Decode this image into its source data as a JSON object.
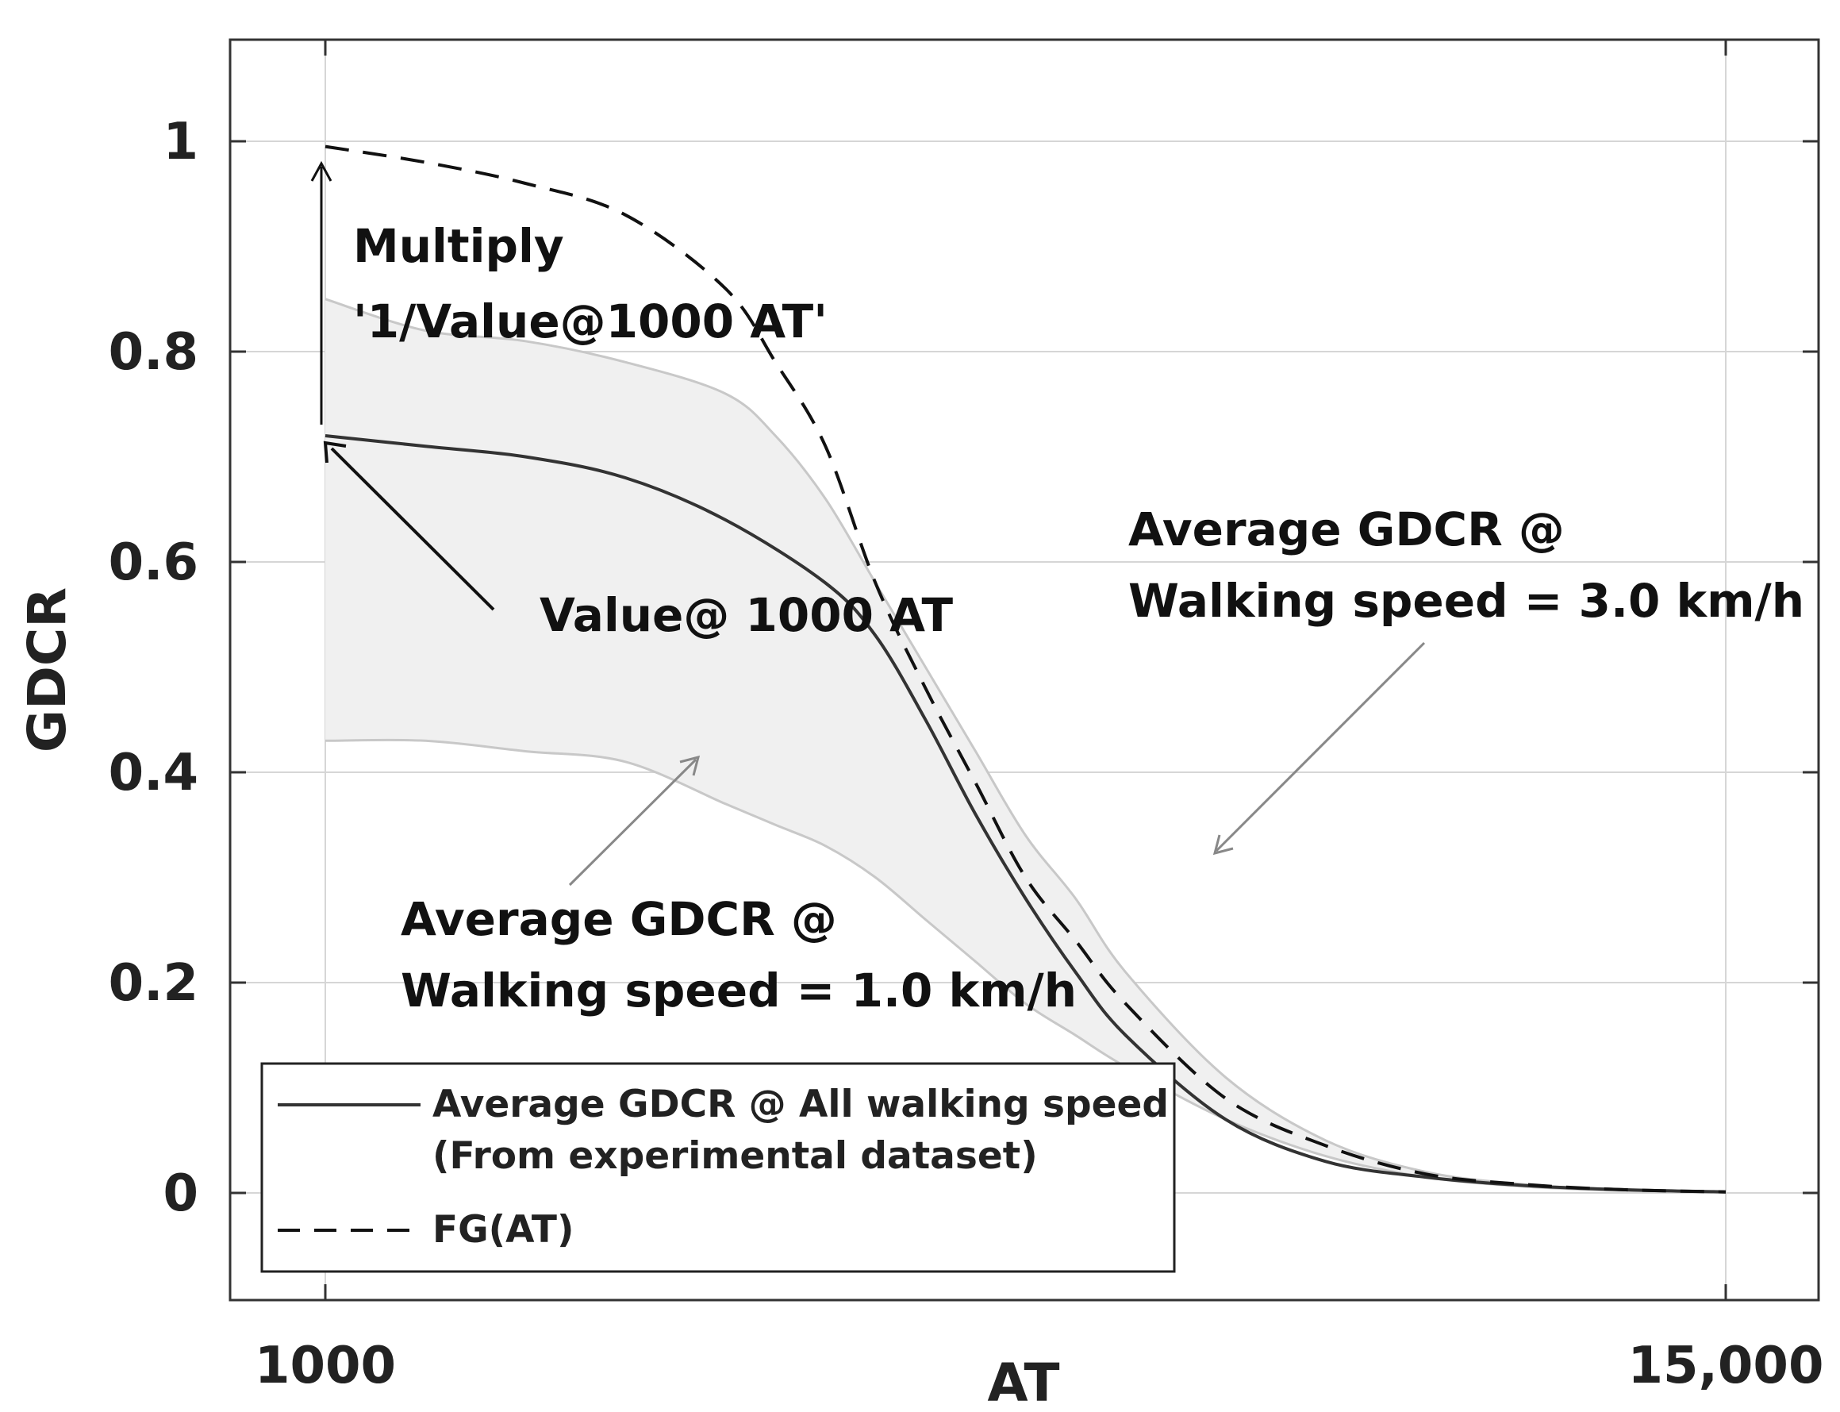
{
  "chart_data": {
    "type": "line",
    "title": "",
    "xlabel": "AT",
    "ylabel": "GDCR",
    "xlim": [
      1000,
      15000
    ],
    "ylim": [
      -0.1,
      1.1
    ],
    "grid": true,
    "x_tick_labels": [
      "1000",
      "15,000"
    ],
    "x_tick_values": [
      1000,
      15000
    ],
    "y_ticks": [
      0,
      0.2,
      0.4,
      0.6,
      0.8,
      1
    ],
    "y_tick_labels": [
      "0",
      "0.2",
      "0.4",
      "0.6",
      "0.8",
      "1"
    ],
    "series": [
      {
        "name": "Average GDCR @ All walking speed (From experimental dataset)",
        "style": "solid",
        "color": "#333333",
        "x": [
          1000,
          2000,
          3000,
          4000,
          5000,
          6000,
          6500,
          7000,
          7500,
          8000,
          8500,
          9000,
          10000,
          11000,
          12000,
          13000,
          14000,
          15000
        ],
        "y": [
          0.72,
          0.71,
          0.7,
          0.68,
          0.64,
          0.58,
          0.53,
          0.45,
          0.36,
          0.28,
          0.21,
          0.15,
          0.07,
          0.03,
          0.015,
          0.007,
          0.003,
          0.001
        ]
      },
      {
        "name": "FG(AT)",
        "style": "dashed",
        "color": "#111111",
        "x": [
          1000,
          2000,
          3000,
          4000,
          5000,
          5500,
          6000,
          6500,
          7000,
          7500,
          8000,
          8500,
          9000,
          10000,
          11000,
          12000,
          13000,
          14000,
          15000
        ],
        "y": [
          0.995,
          0.98,
          0.96,
          0.93,
          0.86,
          0.79,
          0.71,
          0.58,
          0.48,
          0.39,
          0.3,
          0.24,
          0.18,
          0.09,
          0.045,
          0.018,
          0.008,
          0.003,
          0.001
        ]
      }
    ],
    "band": {
      "color": "#f0f0f0",
      "edge_color": "#c8c8c8",
      "x": [
        1000,
        2000,
        3000,
        4000,
        5000,
        5500,
        6000,
        6500,
        7000,
        7500,
        8000,
        8500,
        9000,
        10000,
        11000,
        12000,
        13000,
        14000,
        15000
      ],
      "upper": [
        0.85,
        0.82,
        0.81,
        0.79,
        0.76,
        0.72,
        0.66,
        0.58,
        0.5,
        0.42,
        0.34,
        0.28,
        0.21,
        0.11,
        0.05,
        0.02,
        0.008,
        0.003,
        0.001
      ],
      "lower": [
        0.43,
        0.43,
        0.42,
        0.41,
        0.37,
        0.35,
        0.33,
        0.3,
        0.26,
        0.22,
        0.18,
        0.15,
        0.12,
        0.07,
        0.035,
        0.015,
        0.006,
        0.002,
        0.001
      ]
    },
    "annotations": {
      "multiply_line1": "Multiply",
      "multiply_line2": "'1/Value@1000 AT'",
      "value_at_1000": "Value@ 1000 AT",
      "upper_band_line1": "Average GDCR @",
      "upper_band_line2": "Walking speed = 3.0 km/h",
      "lower_band_line1": "Average GDCR @",
      "lower_band_line2": "Walking speed = 1.0 km/h"
    },
    "legend": {
      "position": "bottom-left",
      "entries": [
        {
          "label_line1": "Average GDCR @ All walking speed",
          "label_line2": "(From experimental dataset)",
          "style": "solid"
        },
        {
          "label_line1": "FG(AT)",
          "label_line2": "",
          "style": "dashed"
        }
      ]
    }
  }
}
